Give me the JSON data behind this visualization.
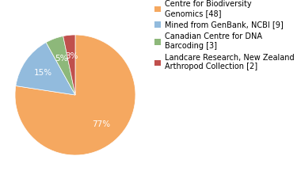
{
  "slices": [
    48,
    9,
    3,
    2
  ],
  "labels": [
    "Centre for Biodiversity\nGenomics [48]",
    "Mined from GenBank, NCBI [9]",
    "Canadian Centre for DNA\nBarcoding [3]",
    "Landcare Research, New Zealand\nArthropod Collection [2]"
  ],
  "colors": [
    "#F5A860",
    "#92BBDD",
    "#8DB87A",
    "#C0504D"
  ],
  "startangle": 90,
  "background_color": "#ffffff",
  "legend_fontsize": 7.0,
  "autopct_fontsize": 7.5
}
